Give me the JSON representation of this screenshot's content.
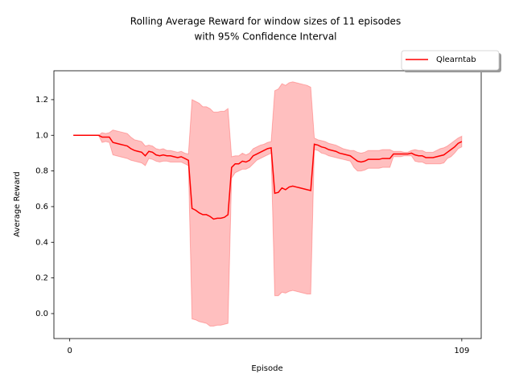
{
  "chart_data": {
    "type": "line",
    "title": [
      "Rolling Average Reward for window sizes of 11 episodes",
      "with 95% Confidence Interval"
    ],
    "xlabel": "Episode",
    "ylabel": "Average Reward",
    "x": [
      1,
      2,
      3,
      4,
      5,
      6,
      7,
      8,
      9,
      10,
      11,
      12,
      13,
      14,
      15,
      16,
      17,
      18,
      19,
      20,
      21,
      22,
      23,
      24,
      25,
      26,
      27,
      28,
      29,
      30,
      31,
      32,
      33,
      34,
      35,
      36,
      37,
      38,
      39,
      40,
      41,
      42,
      43,
      44,
      45,
      46,
      47,
      48,
      49,
      50,
      51,
      52,
      53,
      54,
      55,
      56,
      57,
      58,
      59,
      60,
      61,
      62,
      63,
      64,
      65,
      66,
      67,
      68,
      69,
      70,
      71,
      72,
      73,
      74,
      75,
      76,
      77,
      78,
      79,
      80,
      81,
      82,
      83,
      84,
      85,
      86,
      87,
      88,
      89,
      90,
      91,
      92,
      93,
      94,
      95,
      96,
      97,
      98,
      99,
      100,
      101,
      102,
      103,
      104,
      105,
      106,
      107,
      108,
      109
    ],
    "series": [
      {
        "name": "Qlearntab",
        "color": "#ff0000",
        "band_color": "#ff0000",
        "values": [
          1,
          1,
          1,
          1,
          1,
          1,
          1,
          1,
          0.99,
          0.99,
          0.99,
          0.96,
          0.955,
          0.95,
          0.945,
          0.94,
          0.925,
          0.915,
          0.91,
          0.905,
          0.885,
          0.91,
          0.905,
          0.89,
          0.885,
          0.89,
          0.885,
          0.885,
          0.88,
          0.875,
          0.88,
          0.87,
          0.86,
          0.59,
          0.58,
          0.565,
          0.555,
          0.555,
          0.545,
          0.53,
          0.535,
          0.535,
          0.54,
          0.555,
          0.82,
          0.84,
          0.84,
          0.855,
          0.85,
          0.86,
          0.885,
          0.895,
          0.905,
          0.915,
          0.925,
          0.93,
          0.675,
          0.68,
          0.705,
          0.695,
          0.71,
          0.715,
          0.71,
          0.705,
          0.7,
          0.695,
          0.69,
          0.95,
          0.945,
          0.935,
          0.93,
          0.92,
          0.915,
          0.91,
          0.9,
          0.895,
          0.89,
          0.885,
          0.87,
          0.855,
          0.85,
          0.855,
          0.865,
          0.865,
          0.865,
          0.865,
          0.87,
          0.87,
          0.87,
          0.895,
          0.895,
          0.895,
          0.895,
          0.895,
          0.9,
          0.89,
          0.885,
          0.885,
          0.875,
          0.875,
          0.875,
          0.88,
          0.885,
          0.89,
          0.905,
          0.92,
          0.935,
          0.955,
          0.965
        ],
        "lower": [
          1,
          1,
          1,
          1,
          1,
          1,
          1,
          1,
          0.96,
          0.965,
          0.96,
          0.89,
          0.885,
          0.88,
          0.875,
          0.87,
          0.86,
          0.855,
          0.85,
          0.845,
          0.83,
          0.87,
          0.865,
          0.855,
          0.85,
          0.855,
          0.855,
          0.85,
          0.85,
          0.85,
          0.85,
          0.84,
          0.83,
          -0.03,
          -0.035,
          -0.045,
          -0.05,
          -0.055,
          -0.07,
          -0.07,
          -0.065,
          -0.065,
          -0.06,
          -0.055,
          0.76,
          0.79,
          0.8,
          0.81,
          0.81,
          0.82,
          0.84,
          0.86,
          0.87,
          0.88,
          0.89,
          0.9,
          0.1,
          0.1,
          0.12,
          0.115,
          0.125,
          0.13,
          0.125,
          0.12,
          0.115,
          0.11,
          0.11,
          0.92,
          0.915,
          0.9,
          0.895,
          0.885,
          0.88,
          0.875,
          0.87,
          0.865,
          0.86,
          0.855,
          0.82,
          0.8,
          0.8,
          0.805,
          0.815,
          0.815,
          0.815,
          0.815,
          0.82,
          0.82,
          0.82,
          0.88,
          0.88,
          0.88,
          0.885,
          0.885,
          0.885,
          0.855,
          0.85,
          0.85,
          0.84,
          0.84,
          0.84,
          0.84,
          0.84,
          0.845,
          0.87,
          0.88,
          0.9,
          0.925,
          0.935
        ],
        "upper": [
          1,
          1,
          1,
          1,
          1,
          1,
          1,
          1,
          1.015,
          1.01,
          1.015,
          1.03,
          1.025,
          1.02,
          1.015,
          1.01,
          0.99,
          0.975,
          0.97,
          0.965,
          0.94,
          0.945,
          0.94,
          0.925,
          0.92,
          0.925,
          0.915,
          0.915,
          0.91,
          0.905,
          0.91,
          0.9,
          0.895,
          1.2,
          1.19,
          1.18,
          1.16,
          1.16,
          1.15,
          1.13,
          1.13,
          1.135,
          1.135,
          1.15,
          0.88,
          0.885,
          0.885,
          0.9,
          0.89,
          0.9,
          0.925,
          0.935,
          0.945,
          0.95,
          0.96,
          0.965,
          1.25,
          1.26,
          1.29,
          1.28,
          1.295,
          1.3,
          1.295,
          1.29,
          1.285,
          1.28,
          1.27,
          0.985,
          0.975,
          0.97,
          0.965,
          0.955,
          0.95,
          0.945,
          0.935,
          0.925,
          0.92,
          0.915,
          0.915,
          0.905,
          0.9,
          0.905,
          0.915,
          0.915,
          0.915,
          0.915,
          0.92,
          0.92,
          0.92,
          0.91,
          0.91,
          0.91,
          0.905,
          0.905,
          0.915,
          0.92,
          0.915,
          0.915,
          0.905,
          0.905,
          0.905,
          0.915,
          0.925,
          0.93,
          0.94,
          0.955,
          0.97,
          0.985,
          0.995
        ]
      }
    ],
    "xlim": [
      -4.4,
      114.4
    ],
    "xticks": [
      0,
      109
    ],
    "ylim": [
      -0.14,
      1.362
    ],
    "yticks": [
      {
        "value": 0,
        "label": "0.0"
      },
      0.2,
      0.4,
      0.6,
      0.8,
      {
        "value": 1,
        "label": "1.0"
      },
      1.2
    ],
    "legend": "upper right"
  }
}
